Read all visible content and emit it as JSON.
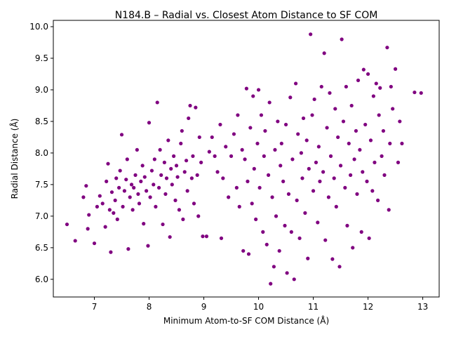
{
  "chart_data": {
    "type": "scatter",
    "title": "N184.B – Radial vs. Closest Atom Distance to SF COM",
    "xlabel": "Minimum Atom-to-SF COM Distance (Å)",
    "ylabel": "Radial Distance (Å)",
    "xlim": [
      6.25,
      13.3
    ],
    "ylim": [
      5.72,
      10.1
    ],
    "xticks": [
      7,
      8,
      9,
      10,
      11,
      12,
      13
    ],
    "xtick_labels": [
      "7",
      "8",
      "9",
      "10",
      "11",
      "12",
      "13"
    ],
    "yticks": [
      6.0,
      6.5,
      7.0,
      7.5,
      8.0,
      8.5,
      9.0,
      9.5,
      10.0
    ],
    "ytick_labels": [
      "6.0",
      "6.5",
      "7.0",
      "7.5",
      "8.0",
      "8.5",
      "9.0",
      "9.5",
      "10.0"
    ],
    "grid": false,
    "marker_color": "#800080",
    "series": [
      {
        "points": [
          [
            6.5,
            6.87
          ],
          [
            6.65,
            6.61
          ],
          [
            6.8,
            7.3
          ],
          [
            6.85,
            7.48
          ],
          [
            6.9,
            7.02
          ],
          [
            6.88,
            6.8
          ],
          [
            7.0,
            6.57
          ],
          [
            7.05,
            7.15
          ],
          [
            7.1,
            7.32
          ],
          [
            7.15,
            7.2
          ],
          [
            7.2,
            6.83
          ],
          [
            7.22,
            7.55
          ],
          [
            7.25,
            7.83
          ],
          [
            7.28,
            7.1
          ],
          [
            7.3,
            6.43
          ],
          [
            7.32,
            7.38
          ],
          [
            7.35,
            7.05
          ],
          [
            7.38,
            7.25
          ],
          [
            7.4,
            7.6
          ],
          [
            7.42,
            6.95
          ],
          [
            7.45,
            7.45
          ],
          [
            7.47,
            7.72
          ],
          [
            7.5,
            8.29
          ],
          [
            7.52,
            7.15
          ],
          [
            7.55,
            7.4
          ],
          [
            7.58,
            7.58
          ],
          [
            7.6,
            7.9
          ],
          [
            7.62,
            6.48
          ],
          [
            7.65,
            7.3
          ],
          [
            7.68,
            7.5
          ],
          [
            7.7,
            7.1
          ],
          [
            7.72,
            7.45
          ],
          [
            7.75,
            7.65
          ],
          [
            7.78,
            8.05
          ],
          [
            7.8,
            7.35
          ],
          [
            7.82,
            7.2
          ],
          [
            7.85,
            7.55
          ],
          [
            7.88,
            7.8
          ],
          [
            7.9,
            6.88
          ],
          [
            7.92,
            7.62
          ],
          [
            7.95,
            7.4
          ],
          [
            7.98,
            6.53
          ],
          [
            8.0,
            8.48
          ],
          [
            8.02,
            7.3
          ],
          [
            8.05,
            7.72
          ],
          [
            8.08,
            7.5
          ],
          [
            8.1,
            7.9
          ],
          [
            8.12,
            7.15
          ],
          [
            8.15,
            8.8
          ],
          [
            8.18,
            7.45
          ],
          [
            8.2,
            8.05
          ],
          [
            8.22,
            7.65
          ],
          [
            8.25,
            6.87
          ],
          [
            8.28,
            7.85
          ],
          [
            8.3,
            7.35
          ],
          [
            8.32,
            7.6
          ],
          [
            8.35,
            8.2
          ],
          [
            8.38,
            6.67
          ],
          [
            8.4,
            7.75
          ],
          [
            8.42,
            7.5
          ],
          [
            8.45,
            7.95
          ],
          [
            8.48,
            7.25
          ],
          [
            8.5,
            7.8
          ],
          [
            8.52,
            7.62
          ],
          [
            8.55,
            7.1
          ],
          [
            8.58,
            8.15
          ],
          [
            8.6,
            8.35
          ],
          [
            8.62,
            6.95
          ],
          [
            8.65,
            7.7
          ],
          [
            8.68,
            7.88
          ],
          [
            8.7,
            7.4
          ],
          [
            8.72,
            8.55
          ],
          [
            8.75,
            8.75
          ],
          [
            8.78,
            7.6
          ],
          [
            8.8,
            7.95
          ],
          [
            8.82,
            7.2
          ],
          [
            8.85,
            8.72
          ],
          [
            8.88,
            7.65
          ],
          [
            8.9,
            7.0
          ],
          [
            8.92,
            8.25
          ],
          [
            8.95,
            7.85
          ],
          [
            8.98,
            6.68
          ],
          [
            9.05,
            6.68
          ],
          [
            9.1,
            8.02
          ],
          [
            9.15,
            8.25
          ],
          [
            9.2,
            7.95
          ],
          [
            9.25,
            7.7
          ],
          [
            9.3,
            8.45
          ],
          [
            9.32,
            6.65
          ],
          [
            9.35,
            7.6
          ],
          [
            9.4,
            8.1
          ],
          [
            9.45,
            7.3
          ],
          [
            9.5,
            7.95
          ],
          [
            9.55,
            8.3
          ],
          [
            9.6,
            7.45
          ],
          [
            9.62,
            8.6
          ],
          [
            9.65,
            7.15
          ],
          [
            9.7,
            8.05
          ],
          [
            9.72,
            6.45
          ],
          [
            9.75,
            7.9
          ],
          [
            9.78,
            9.02
          ],
          [
            9.8,
            7.55
          ],
          [
            9.82,
            6.4
          ],
          [
            9.85,
            8.4
          ],
          [
            9.88,
            7.2
          ],
          [
            9.9,
            8.9
          ],
          [
            9.92,
            7.75
          ],
          [
            9.95,
            6.95
          ],
          [
            9.98,
            8.15
          ],
          [
            10.0,
            9.0
          ],
          [
            10.02,
            7.45
          ],
          [
            10.05,
            8.6
          ],
          [
            10.08,
            6.75
          ],
          [
            10.1,
            7.95
          ],
          [
            10.12,
            8.35
          ],
          [
            10.15,
            6.55
          ],
          [
            10.18,
            7.65
          ],
          [
            10.2,
            8.8
          ],
          [
            10.22,
            5.93
          ],
          [
            10.25,
            7.3
          ],
          [
            10.28,
            6.2
          ],
          [
            10.3,
            8.05
          ],
          [
            10.32,
            7.0
          ],
          [
            10.35,
            8.5
          ],
          [
            10.38,
            6.45
          ],
          [
            10.4,
            7.8
          ],
          [
            10.42,
            8.15
          ],
          [
            10.45,
            7.55
          ],
          [
            10.48,
            6.85
          ],
          [
            10.5,
            8.45
          ],
          [
            10.52,
            6.1
          ],
          [
            10.55,
            7.35
          ],
          [
            10.58,
            8.88
          ],
          [
            10.6,
            6.75
          ],
          [
            10.62,
            7.9
          ],
          [
            10.65,
            6.0
          ],
          [
            10.68,
            9.1
          ],
          [
            10.7,
            7.25
          ],
          [
            10.72,
            8.3
          ],
          [
            10.75,
            6.65
          ],
          [
            10.78,
            8.0
          ],
          [
            10.8,
            7.6
          ],
          [
            10.82,
            8.55
          ],
          [
            10.85,
            7.05
          ],
          [
            10.88,
            8.2
          ],
          [
            10.9,
            6.33
          ],
          [
            10.92,
            7.75
          ],
          [
            10.95,
            9.88
          ],
          [
            10.98,
            8.6
          ],
          [
            11.0,
            7.4
          ],
          [
            11.02,
            8.85
          ],
          [
            11.05,
            7.85
          ],
          [
            11.08,
            6.9
          ],
          [
            11.1,
            8.1
          ],
          [
            11.12,
            7.55
          ],
          [
            11.15,
            9.05
          ],
          [
            11.18,
            7.7
          ],
          [
            11.2,
            9.58
          ],
          [
            11.22,
            6.62
          ],
          [
            11.25,
            8.4
          ],
          [
            11.28,
            7.3
          ],
          [
            11.3,
            8.95
          ],
          [
            11.32,
            7.95
          ],
          [
            11.35,
            6.32
          ],
          [
            11.38,
            7.6
          ],
          [
            11.4,
            8.7
          ],
          [
            11.42,
            7.15
          ],
          [
            11.45,
            8.25
          ],
          [
            11.48,
            6.2
          ],
          [
            11.5,
            7.8
          ],
          [
            11.52,
            9.8
          ],
          [
            11.55,
            8.5
          ],
          [
            11.58,
            7.45
          ],
          [
            11.6,
            9.05
          ],
          [
            11.62,
            6.85
          ],
          [
            11.65,
            8.15
          ],
          [
            11.68,
            7.65
          ],
          [
            11.7,
            8.75
          ],
          [
            11.72,
            6.5
          ],
          [
            11.75,
            7.9
          ],
          [
            11.78,
            8.35
          ],
          [
            11.8,
            7.35
          ],
          [
            11.82,
            9.15
          ],
          [
            11.85,
            8.05
          ],
          [
            11.88,
            6.75
          ],
          [
            11.9,
            7.7
          ],
          [
            11.92,
            9.32
          ],
          [
            11.95,
            8.45
          ],
          [
            11.98,
            7.55
          ],
          [
            12.0,
            9.25
          ],
          [
            12.02,
            6.65
          ],
          [
            12.05,
            8.2
          ],
          [
            12.08,
            7.4
          ],
          [
            12.1,
            8.9
          ],
          [
            12.12,
            7.85
          ],
          [
            12.15,
            9.1
          ],
          [
            12.18,
            7.25
          ],
          [
            12.2,
            8.6
          ],
          [
            12.22,
            9.03
          ],
          [
            12.25,
            7.95
          ],
          [
            12.28,
            8.35
          ],
          [
            12.3,
            7.65
          ],
          [
            12.35,
            9.67
          ],
          [
            12.38,
            7.1
          ],
          [
            12.4,
            8.15
          ],
          [
            12.42,
            9.05
          ],
          [
            12.45,
            8.7
          ],
          [
            12.5,
            9.33
          ],
          [
            12.55,
            7.85
          ],
          [
            12.58,
            8.5
          ],
          [
            12.62,
            8.15
          ],
          [
            12.85,
            8.96
          ],
          [
            12.97,
            8.95
          ]
        ]
      }
    ]
  }
}
